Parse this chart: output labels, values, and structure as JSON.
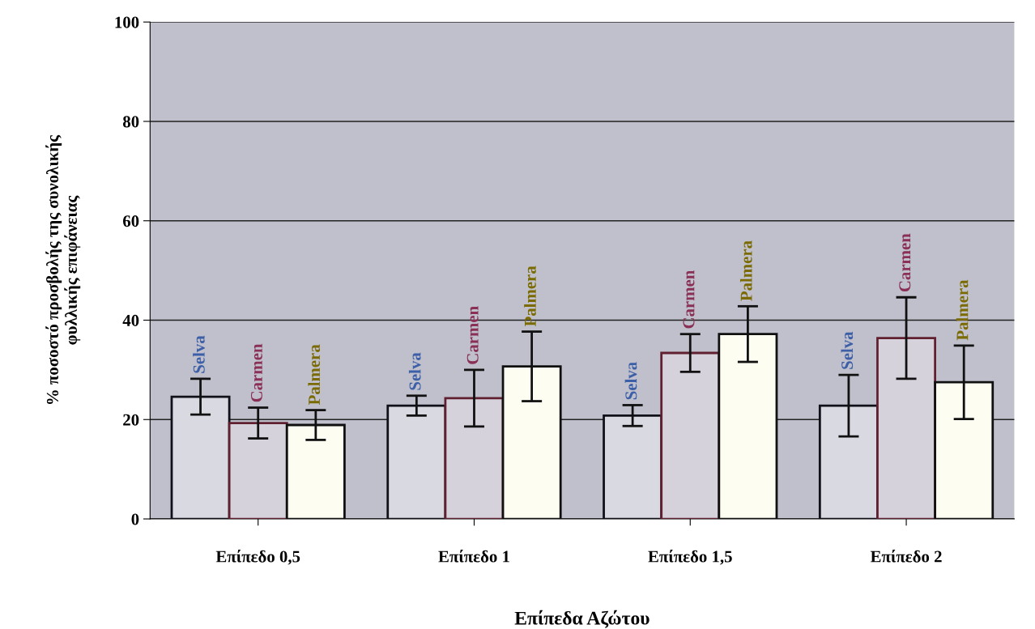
{
  "chart_data": {
    "type": "bar",
    "xlabel": "Επίπεδα Αζώτου",
    "ylabel": "% ποσοστό προσβολής της συνολικής\nφυλλικής επιφάνειας",
    "categories": [
      "Επίπεδο 0,5",
      "Επίπεδο 1",
      "Επίπεδο 1,5",
      "Επίπεδο 2"
    ],
    "series": [
      {
        "name": "Selva",
        "color": "#d9d9e2",
        "values": [
          24.6,
          22.8,
          20.8,
          22.8
        ],
        "errors": [
          3.6,
          2.0,
          2.1,
          6.2
        ]
      },
      {
        "name": "Carmen",
        "color": "#d6d2dc",
        "values": [
          19.3,
          24.3,
          33.4,
          36.4
        ],
        "errors": [
          3.1,
          5.7,
          3.8,
          8.2
        ]
      },
      {
        "name": "Palmera",
        "color": "#fdfdf2",
        "values": [
          18.9,
          30.7,
          37.2,
          27.5
        ],
        "errors": [
          3.0,
          7.0,
          5.6,
          7.4
        ]
      }
    ],
    "ylim": [
      0,
      100
    ],
    "yticks": [
      0,
      20,
      40,
      60,
      80,
      100
    ],
    "grid": "y",
    "legend": false
  }
}
